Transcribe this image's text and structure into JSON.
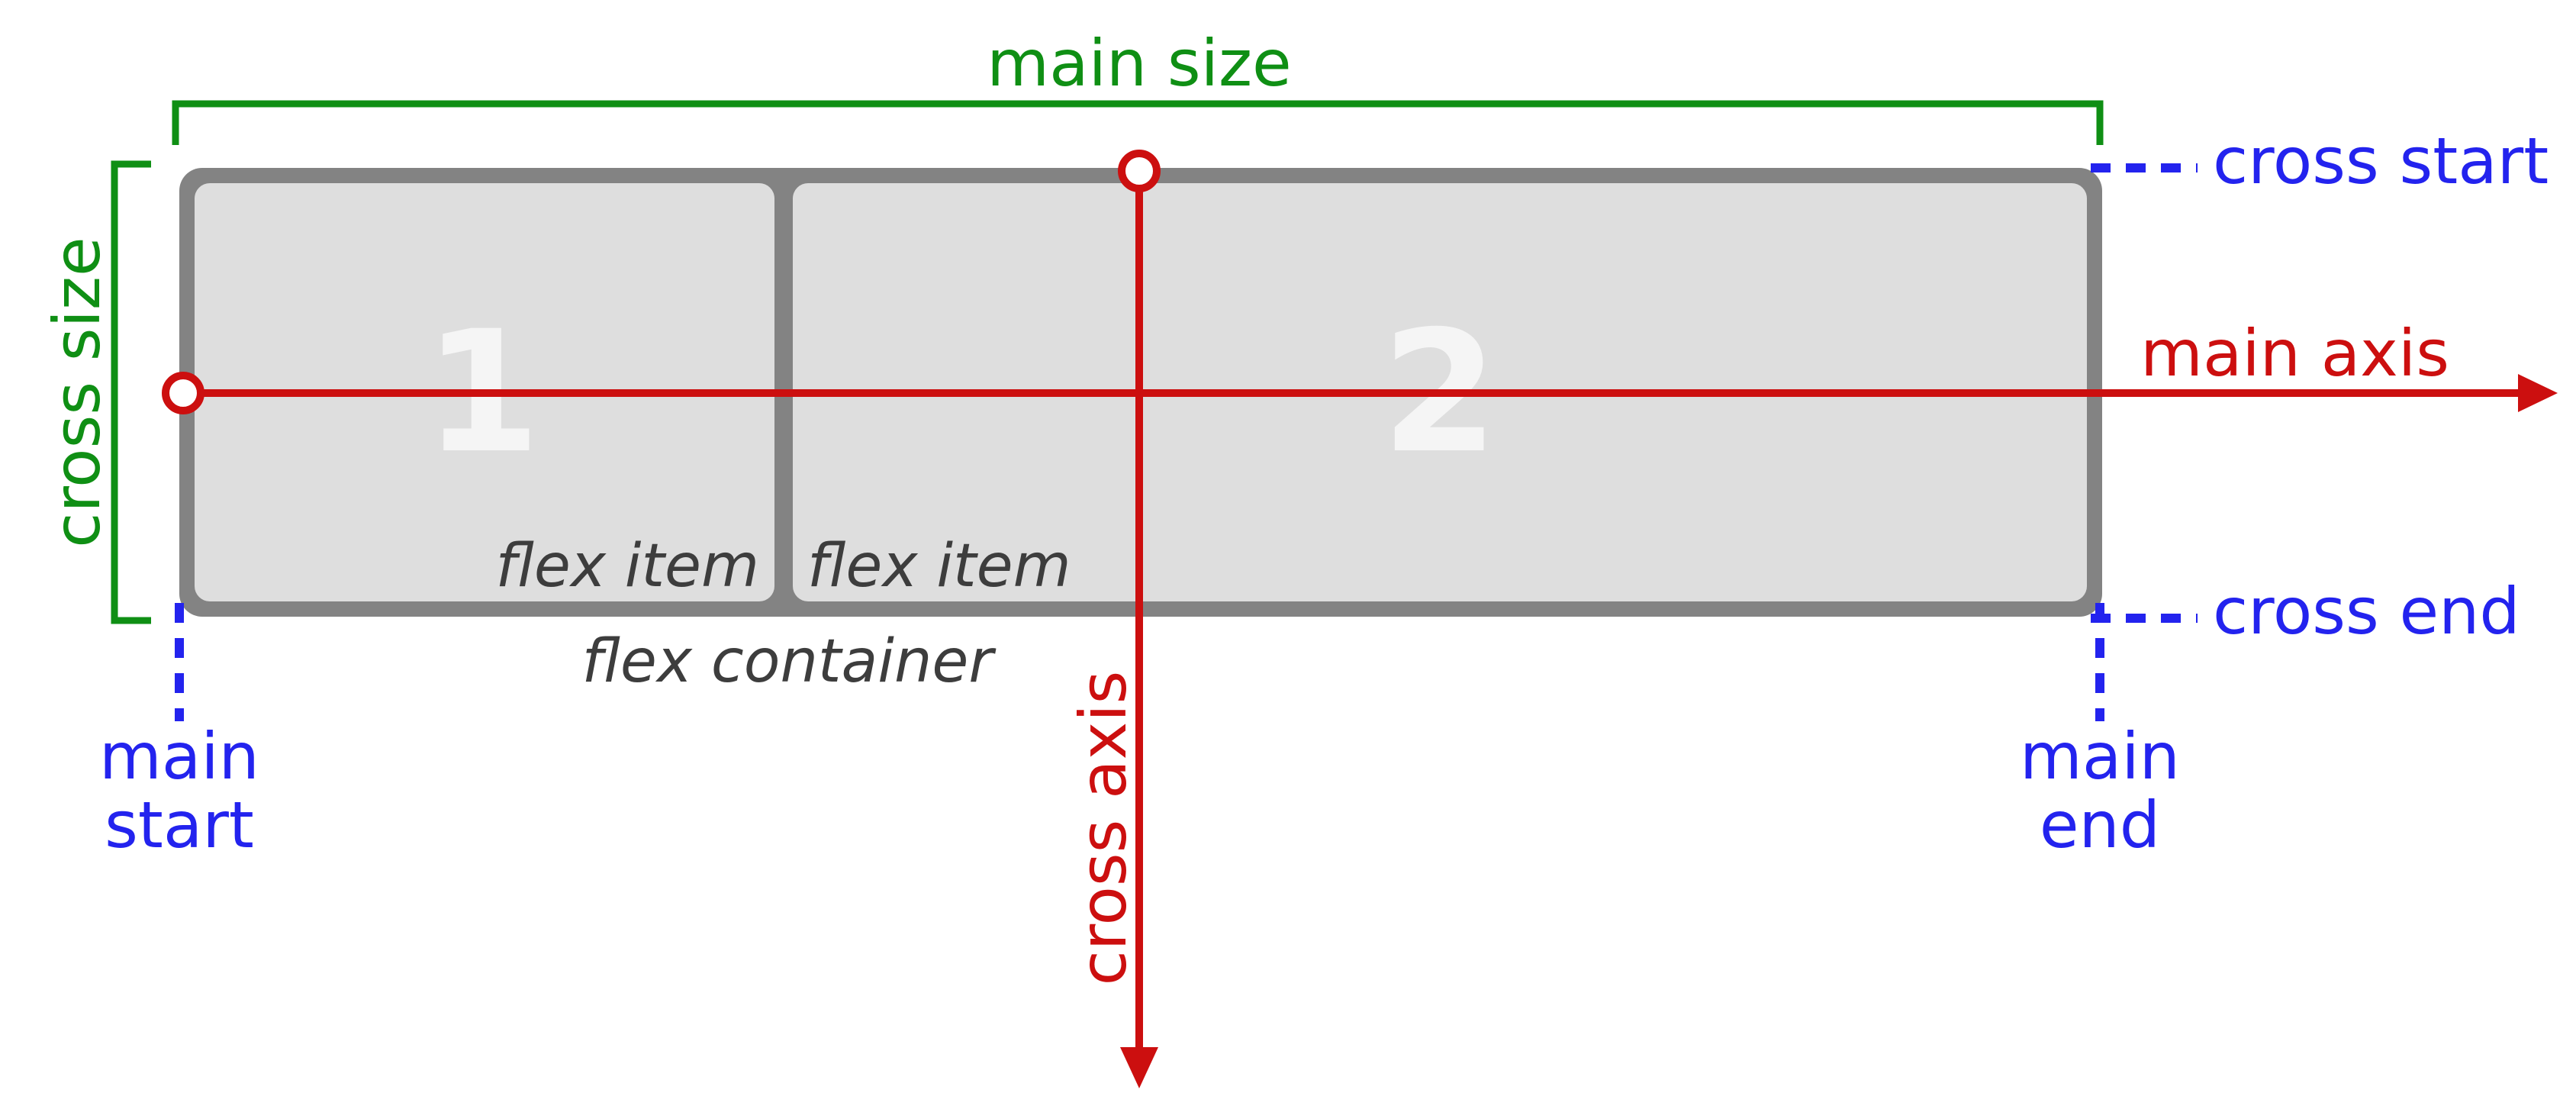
{
  "colors": {
    "main_size": "#0f8f14",
    "cross_size": "#0f8f14",
    "edges": "#2323ee",
    "axes": "#cc0f0f",
    "container_border": "#838383",
    "item_fill": "#dedede",
    "item_number": "#f5f5f5",
    "italic_text": "#3d3d3d"
  },
  "labels": {
    "main_size": "main size",
    "cross_size": "cross size",
    "cross_start": "cross start",
    "cross_end": "cross end",
    "main_axis": "main axis",
    "cross_axis": "cross axis",
    "main_start_line1": "main",
    "main_start_line2": "start",
    "main_end_line1": "main",
    "main_end_line2": "end",
    "flex_container": "flex container"
  },
  "items": [
    {
      "number": "1",
      "label": "flex item"
    },
    {
      "number": "2",
      "label": "flex item"
    }
  ]
}
